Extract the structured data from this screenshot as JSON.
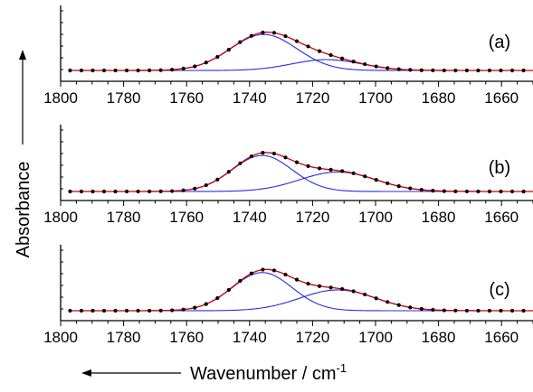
{
  "chart_data": [
    {
      "type": "line",
      "panel_label": "(a)",
      "xlim": [
        1800,
        1650
      ],
      "xticks": [
        1800,
        1780,
        1760,
        1740,
        1720,
        1700,
        1680,
        1660
      ],
      "peaks": [
        {
          "center": 1735.5,
          "height": 0.83,
          "width": 10.5
        },
        {
          "center": 1715.5,
          "height": 0.25,
          "width": 11.0
        }
      ],
      "baseline": 0.0,
      "series": [
        {
          "role": "measured",
          "style": "points",
          "color": "#000000"
        },
        {
          "role": "fit_sum",
          "style": "line",
          "color": "#cc0000"
        },
        {
          "role": "component",
          "peak": 0,
          "style": "line",
          "color": "#2a2ae0"
        },
        {
          "role": "component",
          "peak": 1,
          "style": "line",
          "color": "#2a2ae0"
        }
      ]
    },
    {
      "type": "line",
      "panel_label": "(b)",
      "xlim": [
        1800,
        1650
      ],
      "xticks": [
        1800,
        1780,
        1760,
        1740,
        1720,
        1700,
        1680,
        1660
      ],
      "peaks": [
        {
          "center": 1736.0,
          "height": 0.83,
          "width": 9.5
        },
        {
          "center": 1712.0,
          "height": 0.45,
          "width": 12.0
        }
      ],
      "baseline": 0.0,
      "series": [
        {
          "role": "measured",
          "style": "points",
          "color": "#000000"
        },
        {
          "role": "fit_sum",
          "style": "line",
          "color": "#cc0000"
        },
        {
          "role": "component",
          "peak": 0,
          "style": "line",
          "color": "#2a2ae0"
        },
        {
          "role": "component",
          "peak": 1,
          "style": "line",
          "color": "#2a2ae0"
        }
      ]
    },
    {
      "type": "line",
      "panel_label": "(c)",
      "xlim": [
        1800,
        1650
      ],
      "xticks": [
        1800,
        1780,
        1760,
        1740,
        1720,
        1700,
        1680,
        1660
      ],
      "peaks": [
        {
          "center": 1736.0,
          "height": 0.88,
          "width": 9.5
        },
        {
          "center": 1712.0,
          "height": 0.48,
          "width": 12.0
        }
      ],
      "baseline": 0.0,
      "series": [
        {
          "role": "measured",
          "style": "points",
          "color": "#000000"
        },
        {
          "role": "fit_sum",
          "style": "line",
          "color": "#cc0000"
        },
        {
          "role": "component",
          "peak": 0,
          "style": "line",
          "color": "#2a2ae0"
        },
        {
          "role": "component",
          "peak": 1,
          "style": "line",
          "color": "#2a2ae0"
        }
      ]
    }
  ],
  "axes": {
    "ylabel": "Absorbance",
    "xlabel": "Wavenumber / cm",
    "xlabel_superscript": "-1"
  }
}
